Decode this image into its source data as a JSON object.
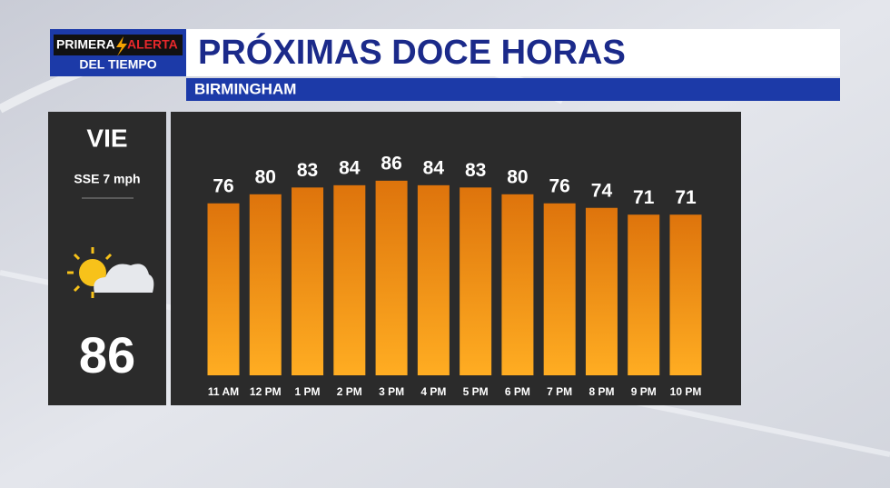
{
  "logo": {
    "line1a": "PRIMERA",
    "line1b": "ALERTA",
    "line2": "DEL TIEMPO"
  },
  "header": {
    "title": "PRÓXIMAS DOCE HORAS",
    "location": "BIRMINGHAM"
  },
  "side_panel": {
    "day": "VIE",
    "wind": "SSE 7 mph",
    "high": "86"
  },
  "chart_data": {
    "type": "bar",
    "categories": [
      "11 AM",
      "12 PM",
      "1 PM",
      "2 PM",
      "3 PM",
      "4 PM",
      "5 PM",
      "6 PM",
      "7 PM",
      "8 PM",
      "9 PM",
      "10 PM"
    ],
    "values": [
      76,
      80,
      83,
      84,
      86,
      84,
      83,
      80,
      76,
      74,
      71,
      71
    ],
    "color": "#f08a12"
  }
}
